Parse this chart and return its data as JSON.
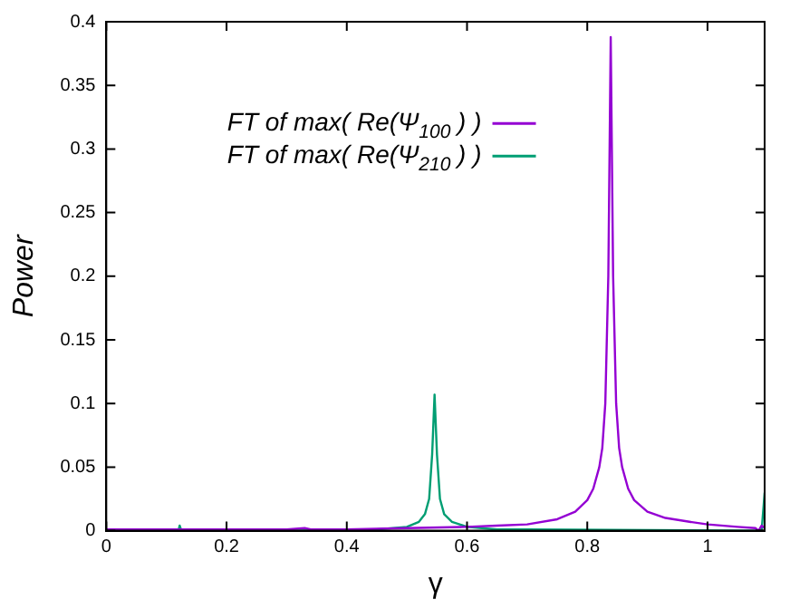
{
  "chart_data": {
    "type": "line",
    "xlabel": "γ",
    "ylabel": "Power",
    "xlim": [
      0,
      1.095
    ],
    "ylim": [
      0,
      0.4
    ],
    "xticks": [
      0,
      0.2,
      0.4,
      0.6,
      0.8,
      1
    ],
    "yticks": [
      0,
      0.05,
      0.1,
      0.15,
      0.2,
      0.25,
      0.3,
      0.35,
      0.4
    ],
    "grid": false,
    "legend": "top left",
    "marker": "none",
    "line_style": "solid",
    "series": [
      {
        "name": "FT of max( Re(Ψ$_{100}$ ) )",
        "color": "#9400d3",
        "x": [
          0,
          0.1,
          0.2,
          0.3,
          0.33,
          0.34,
          0.4,
          0.5,
          0.6,
          0.65,
          0.7,
          0.75,
          0.78,
          0.8,
          0.81,
          0.82,
          0.825,
          0.83,
          0.835,
          0.839,
          0.843,
          0.848,
          0.853,
          0.858,
          0.868,
          0.878,
          0.9,
          0.93,
          0.97,
          1.0,
          1.05,
          1.08,
          1.085,
          1.09,
          1.095
        ],
        "values": [
          0.001,
          0.001,
          0.001,
          0.001,
          0.002,
          0.001,
          0.001,
          0.002,
          0.003,
          0.004,
          0.005,
          0.009,
          0.015,
          0.024,
          0.033,
          0.05,
          0.065,
          0.1,
          0.2,
          0.388,
          0.2,
          0.1,
          0.065,
          0.05,
          0.033,
          0.024,
          0.015,
          0.01,
          0.007,
          0.005,
          0.003,
          0.002,
          0,
          0.004,
          0.002
        ]
      },
      {
        "name": "FT of max( Re(Ψ$_{210}$ ) )",
        "color": "#009e73",
        "x": [
          0,
          0.12,
          0.122,
          0.125,
          0.3,
          0.45,
          0.5,
          0.52,
          0.53,
          0.537,
          0.542,
          0.546,
          0.55,
          0.555,
          0.562,
          0.575,
          0.6,
          0.65,
          0.7,
          1.09,
          1.095
        ],
        "values": [
          0,
          0,
          0.004,
          0,
          0,
          0.001,
          0.003,
          0.007,
          0.013,
          0.025,
          0.06,
          0.107,
          0.06,
          0.025,
          0.013,
          0.007,
          0.003,
          0.001,
          0.001,
          0,
          0.03
        ]
      }
    ]
  }
}
